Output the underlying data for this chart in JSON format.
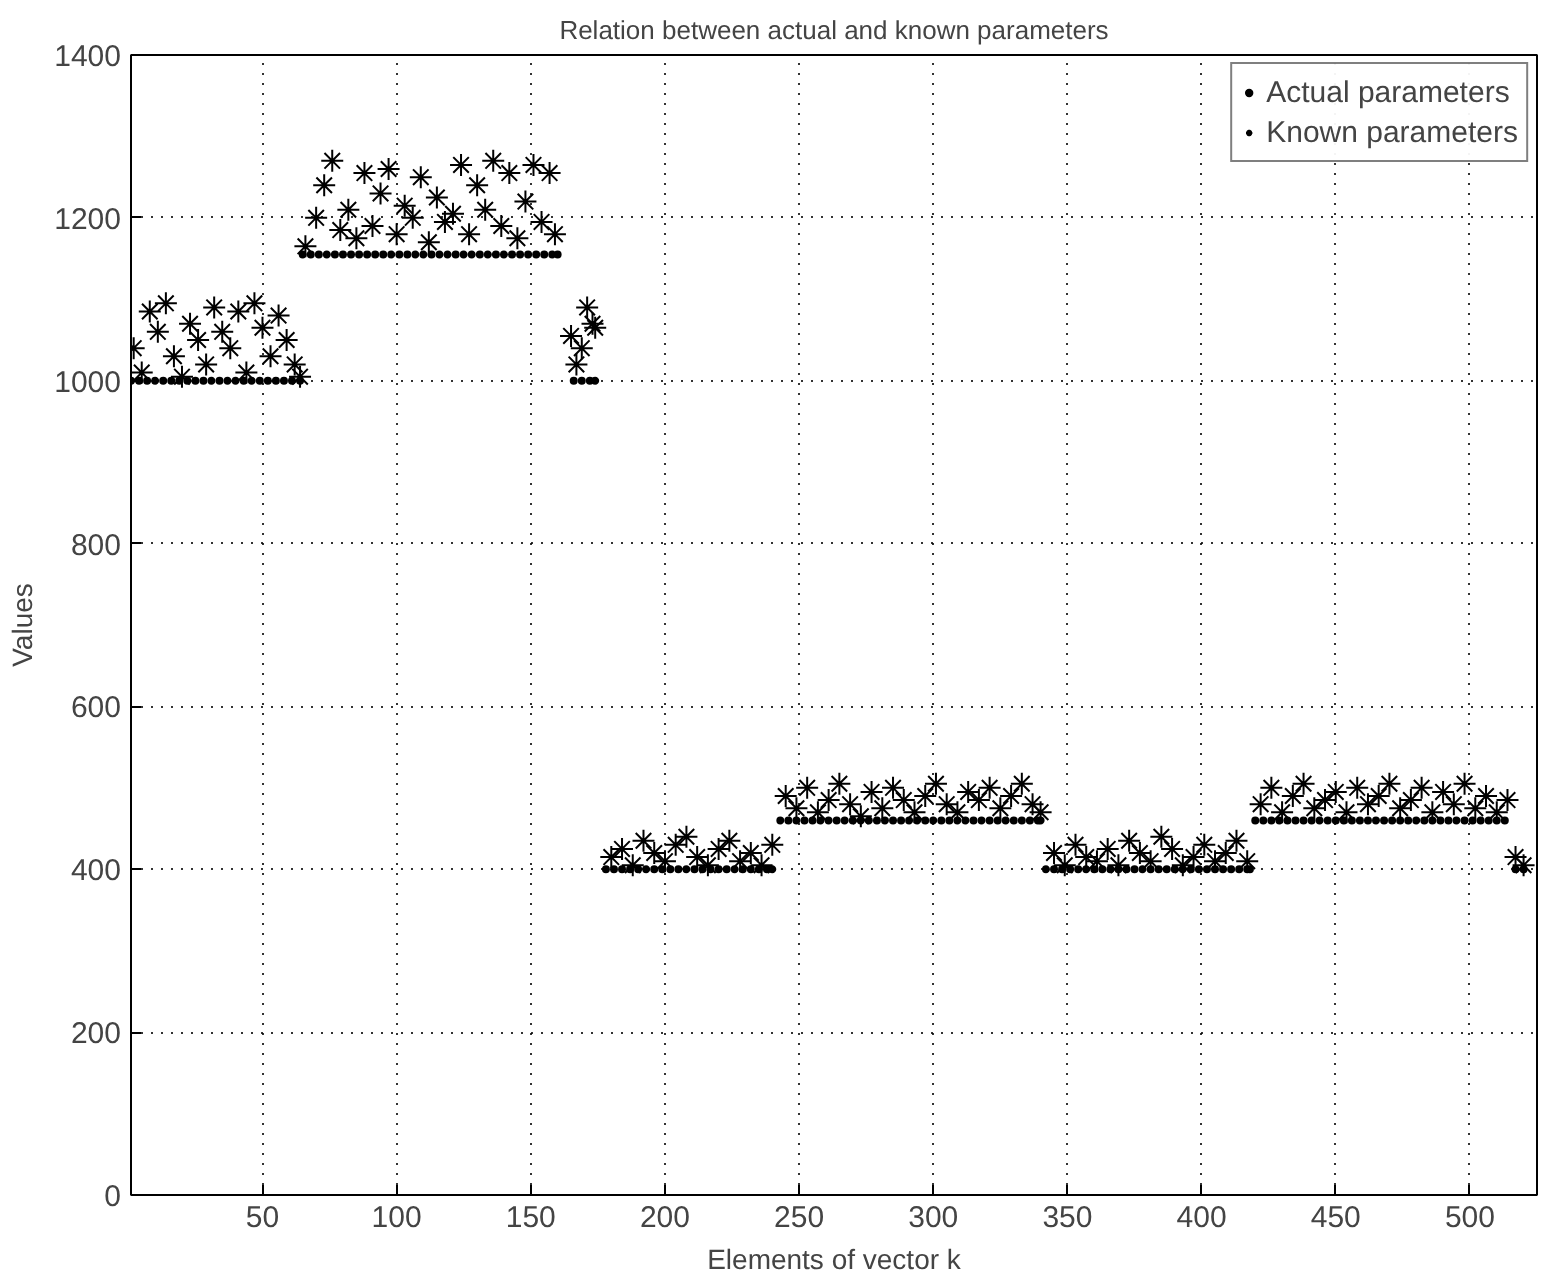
{
  "chart_data": {
    "type": "scatter",
    "title": "Relation between actual and known parameters",
    "xlabel": "Elements of vector k",
    "ylabel": "Values",
    "xlim": [
      1,
      525
    ],
    "xticks": [
      50,
      100,
      150,
      200,
      250,
      300,
      350,
      400,
      450,
      500
    ],
    "ylim": [
      0,
      1400
    ],
    "yticks": [
      0,
      200,
      400,
      600,
      800,
      1000,
      1200,
      1400
    ],
    "grid": true,
    "legend": "top right",
    "line_style": "dotted",
    "series": [
      {
        "name": "Actual parameters",
        "color": "#000000",
        "marker": "circle",
        "x": [
          1,
          4,
          7,
          10,
          13,
          16,
          19,
          22,
          25,
          28,
          31,
          34,
          37,
          40,
          43,
          46,
          49,
          52,
          55,
          58,
          61,
          64,
          65,
          68,
          71,
          74,
          77,
          80,
          83,
          86,
          89,
          92,
          95,
          98,
          101,
          104,
          107,
          110,
          113,
          116,
          119,
          122,
          125,
          128,
          131,
          134,
          137,
          140,
          143,
          146,
          149,
          152,
          155,
          158,
          160,
          166,
          169,
          172,
          174,
          178,
          181,
          184,
          187,
          190,
          193,
          196,
          199,
          202,
          205,
          208,
          211,
          214,
          217,
          220,
          223,
          226,
          229,
          232,
          235,
          238,
          240,
          243,
          246,
          249,
          252,
          255,
          258,
          261,
          264,
          267,
          270,
          273,
          276,
          279,
          282,
          285,
          288,
          291,
          294,
          297,
          300,
          303,
          306,
          309,
          312,
          315,
          318,
          321,
          324,
          327,
          330,
          333,
          336,
          339,
          340,
          342,
          345,
          348,
          351,
          354,
          357,
          360,
          363,
          366,
          369,
          372,
          375,
          378,
          381,
          384,
          387,
          390,
          393,
          396,
          399,
          402,
          405,
          408,
          411,
          414,
          417,
          418,
          420,
          423,
          426,
          429,
          432,
          435,
          438,
          441,
          444,
          447,
          450,
          453,
          456,
          459,
          462,
          465,
          468,
          471,
          474,
          477,
          480,
          483,
          486,
          489,
          492,
          495,
          498,
          501,
          504,
          507,
          510,
          513,
          517,
          520
        ],
        "values": [
          1000,
          1000,
          1000,
          1000,
          1000,
          1000,
          1000,
          1000,
          1000,
          1000,
          1000,
          1000,
          1000,
          1000,
          1000,
          1000,
          1000,
          1000,
          1000,
          1000,
          1000,
          1000,
          1155,
          1155,
          1155,
          1155,
          1155,
          1155,
          1155,
          1155,
          1155,
          1155,
          1155,
          1155,
          1155,
          1155,
          1155,
          1155,
          1155,
          1155,
          1155,
          1155,
          1155,
          1155,
          1155,
          1155,
          1155,
          1155,
          1155,
          1155,
          1155,
          1155,
          1155,
          1155,
          1155,
          1000,
          1000,
          1000,
          1000,
          400,
          400,
          400,
          400,
          400,
          400,
          400,
          400,
          400,
          400,
          400,
          400,
          400,
          400,
          400,
          400,
          400,
          400,
          400,
          400,
          400,
          400,
          460,
          460,
          460,
          460,
          460,
          460,
          460,
          460,
          460,
          460,
          460,
          460,
          460,
          460,
          460,
          460,
          460,
          460,
          460,
          460,
          460,
          460,
          460,
          460,
          460,
          460,
          460,
          460,
          460,
          460,
          460,
          460,
          460,
          460,
          400,
          400,
          400,
          400,
          400,
          400,
          400,
          400,
          400,
          400,
          400,
          400,
          400,
          400,
          400,
          400,
          400,
          400,
          400,
          400,
          400,
          400,
          400,
          400,
          400,
          400,
          400,
          460,
          460,
          460,
          460,
          460,
          460,
          460,
          460,
          460,
          460,
          460,
          460,
          460,
          460,
          460,
          460,
          460,
          460,
          460,
          460,
          460,
          460,
          460,
          460,
          460,
          460,
          460,
          460,
          460,
          460,
          460,
          460,
          400,
          400
        ]
      },
      {
        "name": "Known parameters",
        "color": "#000000",
        "marker": "cross",
        "x": [
          2,
          5,
          8,
          11,
          14,
          17,
          20,
          23,
          26,
          29,
          32,
          35,
          38,
          41,
          44,
          47,
          50,
          53,
          56,
          59,
          62,
          64,
          66,
          70,
          73,
          76,
          79,
          82,
          85,
          88,
          91,
          94,
          97,
          100,
          103,
          106,
          109,
          112,
          115,
          118,
          121,
          124,
          127,
          130,
          133,
          136,
          139,
          142,
          145,
          148,
          151,
          154,
          157,
          159,
          165,
          167,
          169,
          171,
          173,
          174,
          180,
          184,
          188,
          192,
          196,
          200,
          204,
          208,
          212,
          216,
          220,
          224,
          228,
          232,
          236,
          240,
          245,
          249,
          253,
          257,
          261,
          265,
          269,
          273,
          277,
          281,
          285,
          289,
          293,
          297,
          301,
          305,
          309,
          313,
          317,
          321,
          325,
          329,
          333,
          337,
          340,
          345,
          349,
          353,
          357,
          361,
          365,
          369,
          373,
          377,
          381,
          385,
          389,
          393,
          397,
          401,
          405,
          409,
          413,
          417,
          422,
          426,
          430,
          434,
          438,
          442,
          446,
          450,
          454,
          458,
          462,
          466,
          470,
          474,
          478,
          482,
          486,
          490,
          494,
          498,
          502,
          506,
          510,
          514,
          517,
          520
        ],
        "values": [
          1040,
          1010,
          1085,
          1060,
          1095,
          1030,
          1005,
          1070,
          1050,
          1020,
          1090,
          1060,
          1040,
          1085,
          1010,
          1095,
          1065,
          1030,
          1080,
          1050,
          1020,
          1005,
          1165,
          1200,
          1240,
          1270,
          1185,
          1210,
          1175,
          1255,
          1190,
          1230,
          1260,
          1180,
          1215,
          1200,
          1250,
          1170,
          1225,
          1195,
          1205,
          1265,
          1180,
          1240,
          1210,
          1270,
          1190,
          1255,
          1175,
          1220,
          1265,
          1195,
          1255,
          1180,
          1055,
          1020,
          1040,
          1090,
          1070,
          1065,
          415,
          425,
          405,
          435,
          420,
          410,
          430,
          440,
          415,
          405,
          425,
          435,
          410,
          420,
          405,
          430,
          490,
          475,
          500,
          470,
          485,
          505,
          480,
          465,
          495,
          475,
          500,
          485,
          470,
          490,
          505,
          480,
          470,
          495,
          485,
          500,
          475,
          490,
          505,
          480,
          470,
          420,
          405,
          430,
          415,
          410,
          425,
          405,
          435,
          420,
          410,
          440,
          425,
          405,
          415,
          430,
          410,
          420,
          435,
          410,
          480,
          500,
          470,
          490,
          505,
          475,
          485,
          495,
          470,
          500,
          480,
          490,
          505,
          475,
          485,
          500,
          470,
          495,
          480,
          505,
          475,
          490,
          470,
          485,
          415,
          405
        ]
      }
    ]
  }
}
